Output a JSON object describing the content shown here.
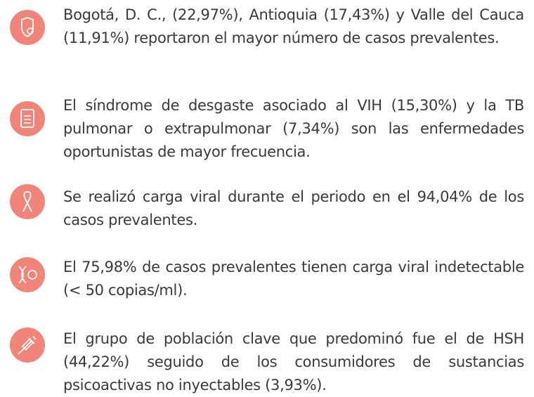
{
  "items": [
    {
      "text": "Bogotá, D. C., (22,97%), Antioquia (17,43%) y Valle del Cauca (11,91%) reportaron el mayor número de casos prevalentes."
    },
    {
      "text": "El síndrome de desgaste asociado al VIH (15,30%) y la TB pulmonar o extrapulmonar (7,34%) son las enfermedades oportunistas de mayor frecuencia."
    },
    {
      "text": "Se realizó carga viral durante el periodo en el 94,04% de los casos prevalentes."
    },
    {
      "text": "El 75,98% de casos prevalentes tienen carga viral indetectable (< 50 copias/ml)."
    },
    {
      "text": "El grupo de población clave que predominó fue el de HSH (44,22%) seguido de los consumidores de sustancias psicoactivas no inyectables (3,93%)."
    }
  ]
}
